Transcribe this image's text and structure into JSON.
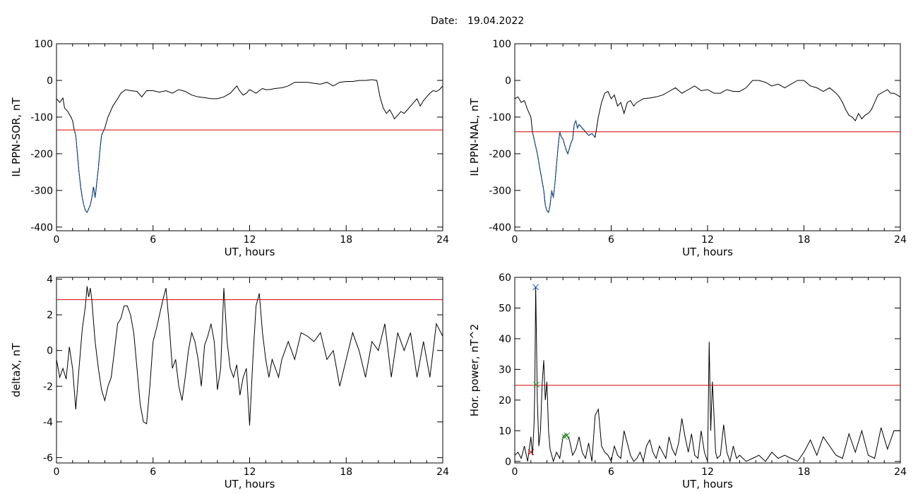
{
  "header": {
    "date_label": "Date:",
    "date_value": "19.04.2022"
  },
  "colors": {
    "trace": "#000000",
    "threshold": "#d40000",
    "highlight": "#1565c0",
    "marker_blue": "#1565c0",
    "marker_green": "#2e9e2e",
    "marker_red": "#d40000"
  },
  "chart_data": [
    {
      "id": "il-sor",
      "type": "line",
      "xlabel": "UT, hours",
      "ylabel": "IL PPN-SOR, nT",
      "xlim": [
        0,
        24
      ],
      "ylim": [
        -410,
        100
      ],
      "xticks": [
        "0",
        "6",
        "12",
        "18",
        "24"
      ],
      "yticks": [
        "100",
        "0",
        "-100",
        "-200",
        "-300",
        "-400"
      ],
      "threshold": -135,
      "highlight_range": [
        1.1,
        3.0
      ],
      "series": [
        {
          "x": [
            0,
            0.2,
            0.4,
            0.5,
            0.7,
            0.9,
            1.0,
            1.1,
            1.2,
            1.3,
            1.4,
            1.5,
            1.6,
            1.7,
            1.8,
            1.9,
            2.0,
            2.1,
            2.2,
            2.3,
            2.4,
            2.5,
            2.6,
            2.7,
            2.8,
            2.9,
            3.0,
            3.2,
            3.5,
            3.8,
            4.0,
            4.3,
            4.6,
            5.0,
            5.3,
            5.6,
            6.0,
            6.4,
            6.8,
            7.2,
            7.6,
            8.0,
            8.4,
            8.8,
            9.2,
            9.6,
            10.0,
            10.4,
            10.8,
            11.0,
            11.2,
            11.4,
            11.6,
            11.8,
            12.0,
            12.2,
            12.4,
            12.6,
            12.8,
            13.0,
            13.2,
            13.6,
            14.0,
            14.4,
            14.8,
            15.2,
            15.6,
            16.0,
            16.4,
            16.8,
            17.2,
            17.6,
            18.0,
            18.4,
            18.8,
            19.2,
            19.6,
            19.9,
            20.1,
            20.3,
            20.5,
            20.7,
            20.9,
            21.0,
            21.2,
            21.4,
            21.6,
            21.8,
            22.0,
            22.2,
            22.4,
            22.6,
            22.8,
            23.0,
            23.2,
            23.4,
            23.6,
            23.8,
            24.0
          ],
          "values": [
            -50,
            -60,
            -48,
            -75,
            -85,
            -100,
            -110,
            -135,
            -150,
            -200,
            -250,
            -290,
            -320,
            -340,
            -355,
            -360,
            -350,
            -340,
            -320,
            -290,
            -320,
            -280,
            -240,
            -190,
            -150,
            -140,
            -130,
            -100,
            -70,
            -50,
            -35,
            -25,
            -28,
            -30,
            -45,
            -28,
            -28,
            -32,
            -28,
            -35,
            -25,
            -30,
            -40,
            -45,
            -47,
            -50,
            -50,
            -45,
            -35,
            -25,
            -15,
            -30,
            -40,
            -35,
            -25,
            -30,
            -35,
            -28,
            -22,
            -25,
            -25,
            -22,
            -20,
            -15,
            -5,
            -5,
            -5,
            -8,
            -10,
            -5,
            -15,
            -5,
            -3,
            -3,
            0,
            0,
            2,
            0,
            -45,
            -75,
            -90,
            -80,
            -95,
            -105,
            -95,
            -85,
            -90,
            -80,
            -70,
            -60,
            -50,
            -70,
            -55,
            -45,
            -35,
            -28,
            -30,
            -25,
            -15
          ]
        }
      ]
    },
    {
      "id": "il-nal",
      "type": "line",
      "xlabel": "UT, hours",
      "ylabel": "IL PPN-NAL, nT",
      "xlim": [
        0,
        24
      ],
      "ylim": [
        -410,
        100
      ],
      "xticks": [
        "0",
        "6",
        "12",
        "18",
        "24"
      ],
      "yticks": [
        "100",
        "0",
        "-100",
        "-200",
        "-300",
        "-400"
      ],
      "threshold": -140,
      "highlight_range": [
        1.1,
        5.0
      ],
      "series": [
        {
          "x": [
            0,
            0.2,
            0.4,
            0.6,
            0.8,
            1.0,
            1.1,
            1.2,
            1.4,
            1.6,
            1.8,
            1.9,
            2.0,
            2.1,
            2.2,
            2.3,
            2.4,
            2.5,
            2.6,
            2.7,
            2.8,
            2.9,
            3.0,
            3.1,
            3.2,
            3.3,
            3.4,
            3.5,
            3.6,
            3.7,
            3.8,
            3.9,
            4.0,
            4.2,
            4.4,
            4.6,
            4.8,
            5.0,
            5.2,
            5.4,
            5.6,
            5.8,
            6.0,
            6.2,
            6.4,
            6.6,
            6.8,
            7.0,
            7.2,
            7.4,
            7.6,
            7.8,
            8.0,
            8.4,
            8.8,
            9.2,
            9.6,
            10.0,
            10.4,
            10.8,
            11.2,
            11.6,
            12.0,
            12.4,
            12.8,
            13.2,
            13.6,
            14.0,
            14.4,
            14.8,
            15.2,
            15.6,
            16.0,
            16.4,
            16.8,
            17.2,
            17.6,
            18.0,
            18.4,
            18.8,
            19.2,
            19.6,
            20.0,
            20.2,
            20.4,
            20.6,
            20.8,
            21.0,
            21.2,
            21.4,
            21.6,
            21.8,
            22.0,
            22.2,
            22.4,
            22.6,
            22.8,
            23.0,
            23.2,
            23.4,
            23.6,
            23.8,
            24.0
          ],
          "values": [
            -50,
            -45,
            -60,
            -55,
            -80,
            -100,
            -140,
            -160,
            -200,
            -250,
            -300,
            -340,
            -355,
            -360,
            -340,
            -300,
            -320,
            -280,
            -230,
            -180,
            -140,
            -155,
            -160,
            -175,
            -190,
            -200,
            -185,
            -170,
            -160,
            -120,
            -110,
            -130,
            -120,
            -130,
            -140,
            -150,
            -145,
            -155,
            -100,
            -60,
            -35,
            -30,
            -50,
            -40,
            -70,
            -60,
            -90,
            -60,
            -55,
            -70,
            -60,
            -55,
            -50,
            -48,
            -45,
            -40,
            -30,
            -20,
            -35,
            -25,
            -15,
            -28,
            -25,
            -35,
            -35,
            -25,
            -30,
            -30,
            -20,
            0,
            0,
            -5,
            -15,
            -10,
            -20,
            -10,
            0,
            0,
            -15,
            -20,
            -30,
            -20,
            -35,
            -45,
            -60,
            -80,
            -95,
            -100,
            -110,
            -90,
            -105,
            -95,
            -90,
            -80,
            -60,
            -40,
            -35,
            -30,
            -25,
            -35,
            -35,
            -40,
            -45
          ]
        }
      ]
    },
    {
      "id": "delta-x",
      "type": "line",
      "xlabel": "UT, hours",
      "ylabel": "deltaX, nT",
      "xlim": [
        0,
        24
      ],
      "ylim": [
        -6.3,
        4.1
      ],
      "xticks": [
        "0",
        "6",
        "12",
        "18",
        "24"
      ],
      "yticks": [
        "4",
        "2",
        "0",
        "-2",
        "-4",
        "-6"
      ],
      "threshold": 2.85,
      "series": [
        {
          "x": [
            0,
            0.2,
            0.4,
            0.6,
            0.8,
            1.0,
            1.2,
            1.4,
            1.6,
            1.8,
            1.9,
            2.0,
            2.1,
            2.2,
            2.4,
            2.6,
            2.8,
            3.0,
            3.2,
            3.4,
            3.6,
            3.8,
            4.0,
            4.2,
            4.4,
            4.6,
            4.8,
            5.0,
            5.2,
            5.4,
            5.6,
            5.8,
            6.0,
            6.2,
            6.4,
            6.6,
            6.8,
            7.0,
            7.2,
            7.4,
            7.6,
            7.8,
            8.0,
            8.2,
            8.4,
            8.6,
            8.8,
            9.0,
            9.2,
            9.4,
            9.6,
            9.8,
            10.0,
            10.2,
            10.4,
            10.6,
            10.8,
            11.0,
            11.2,
            11.4,
            11.6,
            11.8,
            12.0,
            12.2,
            12.4,
            12.6,
            12.8,
            13.0,
            13.2,
            13.4,
            13.6,
            13.8,
            14.0,
            14.4,
            14.8,
            15.2,
            15.6,
            16.0,
            16.4,
            16.8,
            17.2,
            17.6,
            18.0,
            18.4,
            18.8,
            19.2,
            19.6,
            20.0,
            20.4,
            20.8,
            21.2,
            21.6,
            22.0,
            22.4,
            22.8,
            23.2,
            23.6,
            24.0
          ],
          "values": [
            -0.5,
            -1.5,
            -1.0,
            -1.6,
            0.2,
            -1.0,
            -3.3,
            -1.0,
            1.2,
            2.5,
            3.6,
            3.0,
            3.5,
            2.8,
            0.5,
            -1.0,
            -2.2,
            -2.8,
            -2.0,
            -1.5,
            0.0,
            1.5,
            1.8,
            2.5,
            2.5,
            2.0,
            1.0,
            -1.0,
            -3.0,
            -4.0,
            -4.1,
            -2.0,
            0.5,
            1.2,
            2.0,
            2.8,
            3.5,
            1.5,
            -1.0,
            -0.5,
            -2.0,
            -2.8,
            -1.5,
            0.0,
            1.0,
            0.5,
            -0.5,
            -2.0,
            0.3,
            0.8,
            1.5,
            0.5,
            -2.2,
            -1.0,
            3.5,
            0.5,
            -1.0,
            -1.5,
            -0.8,
            -2.5,
            -1.5,
            -1.0,
            -4.2,
            -0.5,
            2.5,
            3.2,
            1.0,
            -0.5,
            -1.5,
            -0.5,
            -1.0,
            -1.5,
            -0.5,
            0.5,
            -0.5,
            1.0,
            0.8,
            0.5,
            1.0,
            -0.5,
            0.0,
            -2.0,
            -0.5,
            1.0,
            0.0,
            -1.5,
            0.5,
            0.0,
            1.5,
            -1.5,
            1.0,
            0.0,
            1.0,
            -1.5,
            0.5,
            -1.5,
            1.5,
            0.8
          ]
        }
      ]
    },
    {
      "id": "hor-power",
      "type": "line",
      "xlabel": "UT, hours",
      "ylabel": "Hor. power, nT^2",
      "xlim": [
        0,
        24
      ],
      "ylim": [
        -0.5,
        60
      ],
      "xticks": [
        "0",
        "6",
        "12",
        "18",
        "24"
      ],
      "yticks": [
        "60",
        "50",
        "40",
        "30",
        "20",
        "10",
        "0"
      ],
      "threshold": 24.8,
      "markers": [
        {
          "x": 1.3,
          "y": 56.8,
          "color": "blue"
        },
        {
          "x": 1.35,
          "y": 25.0,
          "color": "green"
        },
        {
          "x": 3.1,
          "y": 8.0,
          "color": "green"
        },
        {
          "x": 3.25,
          "y": 8.5,
          "color": "green"
        },
        {
          "x": 1.0,
          "y": 3.0,
          "color": "red"
        }
      ],
      "series": [
        {
          "x": [
            0,
            0.2,
            0.4,
            0.6,
            0.8,
            1.0,
            1.1,
            1.2,
            1.25,
            1.3,
            1.35,
            1.4,
            1.5,
            1.6,
            1.7,
            1.8,
            1.9,
            2.0,
            2.1,
            2.2,
            2.3,
            2.4,
            2.6,
            2.8,
            3.0,
            3.2,
            3.4,
            3.6,
            3.8,
            4.0,
            4.2,
            4.4,
            4.6,
            4.8,
            5.0,
            5.2,
            5.4,
            5.6,
            5.8,
            6.0,
            6.2,
            6.4,
            6.6,
            6.8,
            7.0,
            7.2,
            7.4,
            7.6,
            7.8,
            8.0,
            8.2,
            8.4,
            8.6,
            8.8,
            9.0,
            9.2,
            9.4,
            9.6,
            9.8,
            10.0,
            10.2,
            10.4,
            10.6,
            10.8,
            11.0,
            11.2,
            11.4,
            11.6,
            11.8,
            12.0,
            12.1,
            12.2,
            12.3,
            12.4,
            12.5,
            12.6,
            12.8,
            13.0,
            13.2,
            13.4,
            13.6,
            13.8,
            14.0,
            14.4,
            14.8,
            15.2,
            15.6,
            16.0,
            16.4,
            16.8,
            17.2,
            17.6,
            18.0,
            18.4,
            18.8,
            19.2,
            19.6,
            20.0,
            20.4,
            20.8,
            21.2,
            21.6,
            22.0,
            22.4,
            22.8,
            23.2,
            23.6,
            24.0
          ],
          "values": [
            2,
            3,
            1,
            5,
            0,
            8,
            2,
            12,
            25,
            57,
            40,
            20,
            5,
            10,
            25,
            33,
            20,
            26,
            10,
            4,
            2,
            0,
            3,
            1,
            8,
            9,
            7,
            2,
            4,
            8,
            3,
            1,
            6,
            0,
            15,
            17,
            5,
            3,
            2,
            0,
            5,
            2,
            1,
            10,
            6,
            2,
            0,
            1,
            3,
            0,
            5,
            7,
            3,
            1,
            5,
            3,
            1,
            8,
            4,
            2,
            6,
            14,
            8,
            3,
            9,
            2,
            1,
            10,
            3,
            0,
            39,
            10,
            26,
            15,
            3,
            1,
            2,
            12,
            3,
            0,
            5,
            1,
            2,
            0,
            1,
            2,
            0,
            3,
            1,
            2,
            1,
            0,
            3,
            7,
            2,
            8,
            5,
            2,
            1,
            9,
            3,
            10,
            2,
            1,
            11,
            4,
            10,
            10
          ]
        }
      ]
    }
  ]
}
